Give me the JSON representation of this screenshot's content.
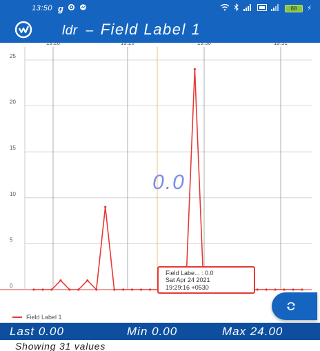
{
  "status_bar": {
    "time": "13:50",
    "icons": [
      "g-icon",
      "settings-icon",
      "messenger-icon"
    ],
    "right_icons": [
      "wifi-icon",
      "bluetooth-icon",
      "signal-icon",
      "volte-icon",
      "signal-icon"
    ],
    "battery": "88"
  },
  "app_bar": {
    "title": "ldr",
    "subtitle": "Field Label 1"
  },
  "chart": {
    "value_overlay": "0.0",
    "tooltip": {
      "line1": "Field Labe... : 0.0",
      "line2": "Sat Apr 24 2021",
      "line3": "19:29:16 +0530"
    },
    "legend": "Field Label 1",
    "colors": {
      "series": "#e53935",
      "grid": "#cccccc",
      "overlay": "#7b8de8",
      "cursor": "#f0c27a"
    }
  },
  "chart_data": {
    "type": "line",
    "x_tick_labels": [
      "19:26",
      "19:28",
      "19:30",
      "19:31"
    ],
    "y_tick_labels": [
      "0",
      "5",
      "10",
      "15",
      "20",
      "25"
    ],
    "ylim": [
      0,
      25
    ],
    "grid": true,
    "legend_position": "bottom-left",
    "series": [
      {
        "name": "Field Label 1",
        "values": [
          0,
          0,
          0,
          1,
          0,
          0,
          1,
          0,
          9,
          0,
          0,
          0,
          0,
          0,
          0,
          0,
          0,
          0,
          24,
          0,
          0,
          0,
          1,
          1,
          0,
          0,
          0,
          0,
          0,
          0,
          0
        ]
      }
    ]
  },
  "stats": {
    "last": "Last 0.00",
    "min": "Min 0.00",
    "max": "Max 24.00"
  },
  "footer": {
    "showing": "Showing  31 values"
  }
}
